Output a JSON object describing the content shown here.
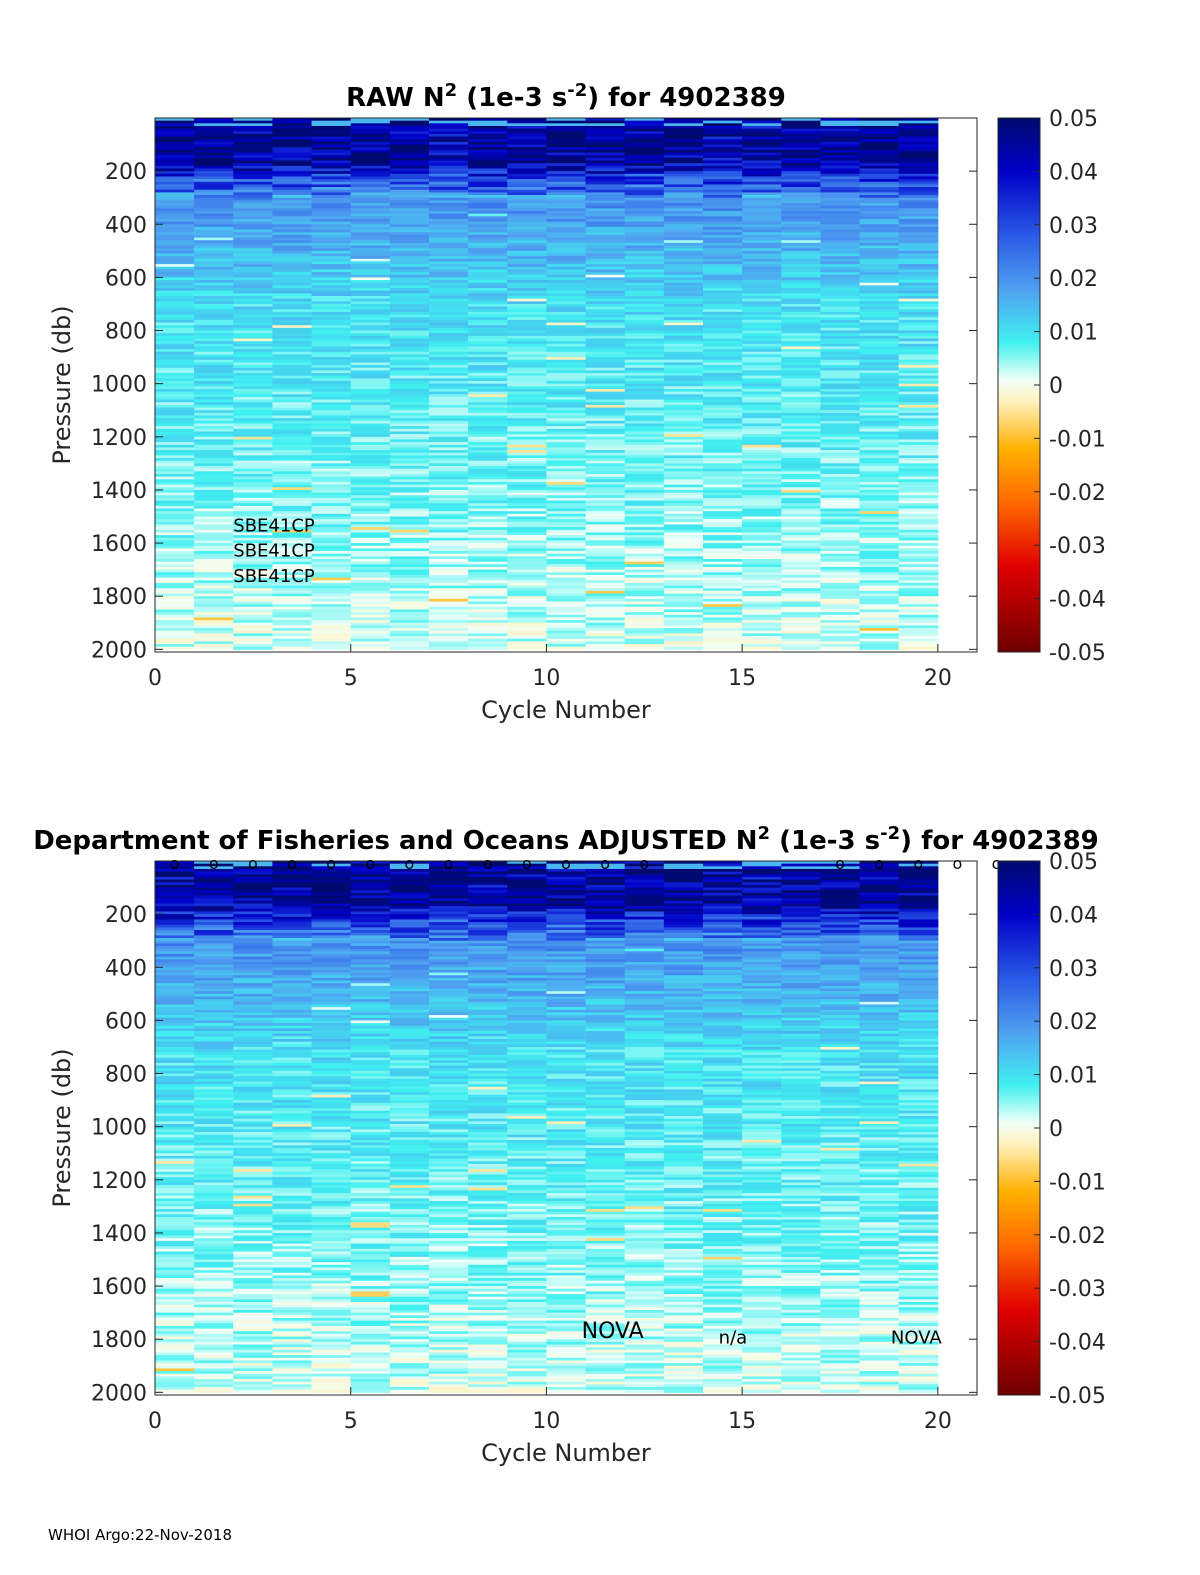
{
  "footer": "WHOI Argo:22-Nov-2018",
  "chart_data": [
    {
      "type": "heatmap",
      "title_prefix": "RAW N",
      "title_sup1": "2",
      "title_mid": " (1e-3 s",
      "title_sup2": "-2",
      "title_suffix": ") for 4902389",
      "xlabel": "Cycle Number",
      "ylabel": "Pressure (db)",
      "xlim": [
        0,
        21
      ],
      "ylim": [
        0,
        2010
      ],
      "xticks": [
        0,
        5,
        10,
        15,
        20
      ],
      "yticks": [
        200,
        400,
        600,
        800,
        1000,
        1200,
        1400,
        1600,
        1800,
        2000
      ],
      "colorbar_ticks": [
        "0.05",
        "0.04",
        "0.03",
        "0.02",
        "0.01",
        "0",
        "-0.01",
        "-0.02",
        "-0.03",
        "-0.04",
        "-0.05"
      ],
      "clim": [
        -0.05,
        0.05
      ],
      "colormap": "blue-cyan-white-orange-red",
      "cycles": [
        0,
        1,
        2,
        3,
        4,
        5,
        6,
        7,
        8,
        9,
        10,
        11,
        12,
        13,
        14,
        15,
        16,
        17,
        18,
        19
      ],
      "annotations": [
        {
          "text": "SBE41CP",
          "x": 2.0,
          "y": 1530
        },
        {
          "text": "SBE41CP",
          "x": 2.0,
          "y": 1625
        },
        {
          "text": "SBE41CP",
          "x": 2.0,
          "y": 1720
        }
      ]
    },
    {
      "type": "heatmap",
      "title_prefix": "Department of Fisheries and Oceans  ADJUSTED N",
      "title_sup1": "2",
      "title_mid": " (1e-3 s",
      "title_sup2": "-2",
      "title_suffix": ") for 4902389",
      "xlabel": "Cycle Number",
      "ylabel": "Pressure (db)",
      "xlim": [
        0,
        21
      ],
      "ylim": [
        0,
        2010
      ],
      "xticks": [
        0,
        5,
        10,
        15,
        20
      ],
      "yticks": [
        200,
        400,
        600,
        800,
        1000,
        1200,
        1400,
        1600,
        1800,
        2000
      ],
      "colorbar_ticks": [
        "0.05",
        "0.04",
        "0.03",
        "0.02",
        "0.01",
        "0",
        "-0.01",
        "-0.02",
        "-0.03",
        "-0.04",
        "-0.05"
      ],
      "clim": [
        -0.05,
        0.05
      ],
      "colormap": "blue-cyan-white-orange-red",
      "cycles": [
        0,
        1,
        2,
        3,
        4,
        5,
        6,
        7,
        8,
        9,
        10,
        11,
        12,
        13,
        14,
        15,
        16,
        17,
        18,
        19
      ],
      "qc_marker": "o",
      "qc_marker_cycles": [
        0,
        1,
        2,
        3,
        4,
        5,
        6,
        7,
        8,
        9,
        10,
        11,
        12,
        17,
        18,
        19,
        20,
        21
      ],
      "annotations": [
        {
          "text": "NOVA",
          "x": 10.9,
          "y": 1770,
          "size": "large"
        },
        {
          "text": "n/a",
          "x": 14.4,
          "y": 1790
        },
        {
          "text": "NOVA",
          "x": 18.8,
          "y": 1790
        }
      ]
    }
  ]
}
